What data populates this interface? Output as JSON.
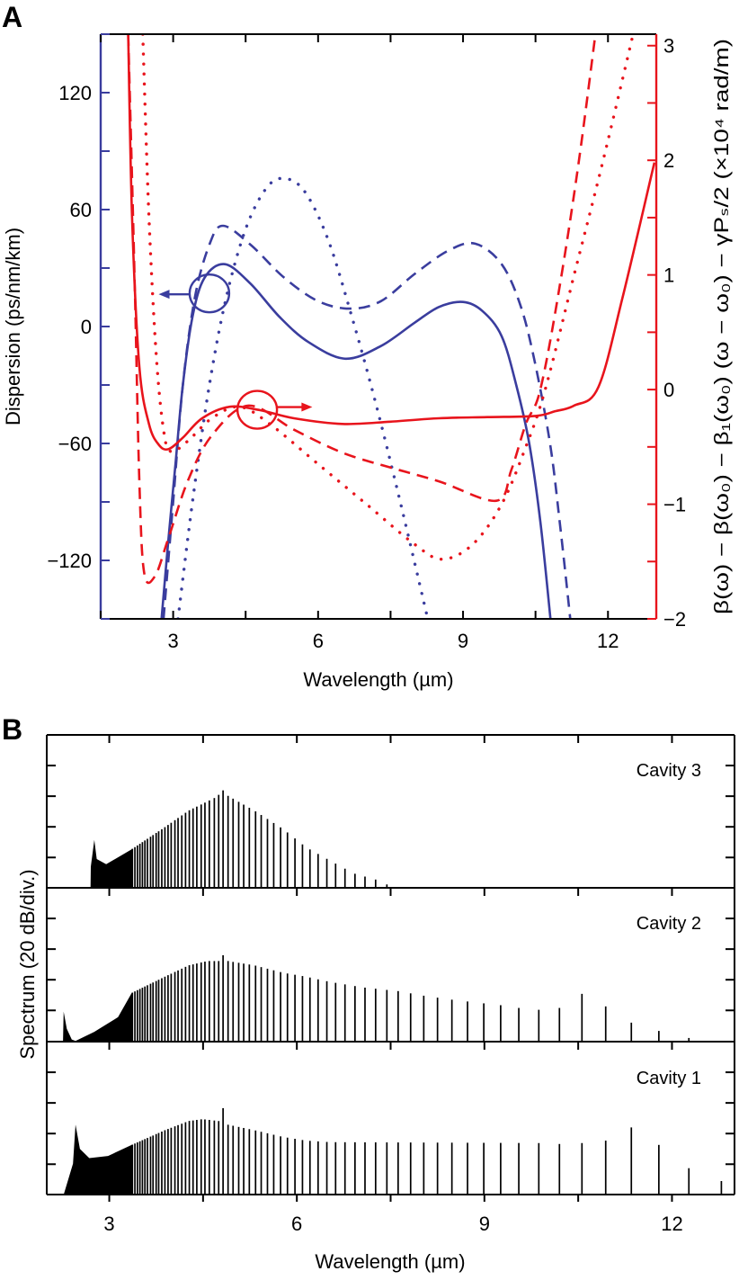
{
  "panel_labels": {
    "a": "A",
    "b": "B"
  },
  "chart_data": [
    {
      "type": "line",
      "panel": "A",
      "xlabel": "Wavelength (µm)",
      "ylabel": "Dispersion (ps/nm/km)",
      "y2label": "β(ω) − β(ω₀) − β₁(ω₀) (ω − ω₀) − γPₛ/2 (×10⁴ rad/m)",
      "xlim": [
        1.5,
        13
      ],
      "ylim": [
        -150,
        150
      ],
      "y2lim": [
        -2,
        3.1
      ],
      "xticks": [
        3,
        6,
        9,
        12
      ],
      "xtick_labels": [
        "3",
        "6",
        "9",
        "12"
      ],
      "yticks": [
        -120,
        -60,
        0,
        60,
        120
      ],
      "ytick_labels": [
        "−120",
        "−60",
        "0",
        "60",
        "120"
      ],
      "y2ticks": [
        -2,
        -1,
        0,
        1,
        2,
        3
      ],
      "y2tick_labels": [
        "−2",
        "−1",
        "0",
        "1",
        "2",
        "3"
      ],
      "grid": false,
      "colors": {
        "left_axis": "#3a3d9e",
        "right_axis": "#e8141c"
      },
      "series": [
        {
          "axis": "left",
          "style": "solid",
          "color": "#3a3d9e",
          "points": [
            [
              2.76,
              -150
            ],
            [
              2.9,
              -110
            ],
            [
              3.05,
              -70
            ],
            [
              3.2,
              -30
            ],
            [
              3.4,
              5
            ],
            [
              3.65,
              25
            ],
            [
              4.07,
              32
            ],
            [
              4.6,
              22
            ],
            [
              5.2,
              5
            ],
            [
              5.8,
              -8
            ],
            [
              6.56,
              -16.5
            ],
            [
              7.3,
              -10
            ],
            [
              8.0,
              2
            ],
            [
              8.5,
              10
            ],
            [
              9.0,
              12.6
            ],
            [
              9.4,
              8
            ],
            [
              9.8,
              -5
            ],
            [
              10.1,
              -30
            ],
            [
              10.37,
              -60
            ],
            [
              10.6,
              -100
            ],
            [
              10.81,
              -150
            ]
          ]
        },
        {
          "axis": "left",
          "style": "dashed",
          "color": "#3a3d9e",
          "points": [
            [
              2.8,
              -150
            ],
            [
              3.0,
              -90
            ],
            [
              3.2,
              -30
            ],
            [
              3.45,
              15
            ],
            [
              3.75,
              42
            ],
            [
              4.03,
              51.7
            ],
            [
              4.6,
              42
            ],
            [
              5.3,
              25
            ],
            [
              6.0,
              13
            ],
            [
              6.66,
              9.2
            ],
            [
              7.3,
              13
            ],
            [
              8.0,
              27
            ],
            [
              8.7,
              39
            ],
            [
              9.25,
              42.5
            ],
            [
              9.8,
              32
            ],
            [
              10.2,
              10
            ],
            [
              10.5,
              -20
            ],
            [
              10.8,
              -60
            ],
            [
              11.0,
              -100
            ],
            [
              11.22,
              -150
            ]
          ]
        },
        {
          "axis": "left",
          "style": "dotted",
          "color": "#3a3d9e",
          "points": [
            [
              3.1,
              -150
            ],
            [
              3.4,
              -90
            ],
            [
              3.75,
              -30
            ],
            [
              4.1,
              15
            ],
            [
              4.5,
              50
            ],
            [
              4.9,
              70
            ],
            [
              5.25,
              76
            ],
            [
              5.7,
              70
            ],
            [
              6.2,
              45
            ],
            [
              6.7,
              5
            ],
            [
              7.2,
              -40
            ],
            [
              7.7,
              -90
            ],
            [
              8.27,
              -150
            ]
          ]
        },
        {
          "axis": "right",
          "style": "solid",
          "color": "#e8141c",
          "points": [
            [
              2.07,
              3.1
            ],
            [
              2.15,
              1.5
            ],
            [
              2.3,
              0.2
            ],
            [
              2.5,
              -0.3
            ],
            [
              2.7,
              -0.48
            ],
            [
              2.9,
              -0.52
            ],
            [
              3.2,
              -0.42
            ],
            [
              3.6,
              -0.25
            ],
            [
              4.17,
              -0.15
            ],
            [
              4.8,
              -0.18
            ],
            [
              5.5,
              -0.25
            ],
            [
              6.5,
              -0.3
            ],
            [
              7.5,
              -0.28
            ],
            [
              8.5,
              -0.25
            ],
            [
              9.5,
              -0.24
            ],
            [
              10.5,
              -0.23
            ],
            [
              10.9,
              -0.19
            ],
            [
              11.3,
              -0.14
            ],
            [
              11.8,
              0.02
            ],
            [
              12.3,
              0.8
            ],
            [
              12.96,
              1.98
            ]
          ]
        },
        {
          "axis": "right",
          "style": "dashed",
          "color": "#e8141c",
          "points": [
            [
              2.07,
              3.1
            ],
            [
              2.2,
              1.0
            ],
            [
              2.3,
              -0.8
            ],
            [
              2.4,
              -1.6
            ],
            [
              2.62,
              -1.63
            ],
            [
              2.9,
              -1.3
            ],
            [
              3.3,
              -0.8
            ],
            [
              3.8,
              -0.4
            ],
            [
              4.56,
              -0.14
            ],
            [
              5.5,
              -0.35
            ],
            [
              6.5,
              -0.55
            ],
            [
              7.5,
              -0.68
            ],
            [
              8.5,
              -0.8
            ],
            [
              9.69,
              -0.97
            ],
            [
              10.0,
              -0.7
            ],
            [
              10.3,
              -0.3
            ],
            [
              10.6,
              0
            ],
            [
              11.0,
              0.9
            ],
            [
              11.4,
              2.0
            ],
            [
              11.74,
              3.1
            ]
          ]
        },
        {
          "axis": "right",
          "style": "dotted",
          "color": "#e8141c",
          "points": [
            [
              2.37,
              3.1
            ],
            [
              2.5,
              1.5
            ],
            [
              2.65,
              0.3
            ],
            [
              2.8,
              -0.35
            ],
            [
              2.95,
              -0.54
            ],
            [
              3.3,
              -0.45
            ],
            [
              3.8,
              -0.25
            ],
            [
              4.37,
              -0.15
            ],
            [
              5.0,
              -0.3
            ],
            [
              6.0,
              -0.65
            ],
            [
              7.0,
              -1.0
            ],
            [
              8.0,
              -1.35
            ],
            [
              8.57,
              -1.48
            ],
            [
              9.2,
              -1.35
            ],
            [
              9.8,
              -1.0
            ],
            [
              10.3,
              -0.5
            ],
            [
              10.7,
              0
            ],
            [
              11.3,
              1.0
            ],
            [
              11.9,
              2.0
            ],
            [
              12.52,
              3.1
            ]
          ]
        }
      ]
    },
    {
      "type": "bar",
      "panel": "B",
      "xlabel": "Wavelength (µm)",
      "ylabel": "Spectrum (20 dB/div.)",
      "xlim": [
        2,
        13
      ],
      "xticks": [
        3,
        6,
        9,
        12
      ],
      "xtick_labels": [
        "3",
        "6",
        "9",
        "12"
      ],
      "y_unit": "divisions (20 dB each)",
      "ylim": [
        0,
        5
      ],
      "grid": false,
      "comb_lines": [
        12.79,
        12.27,
        11.79,
        11.35,
        10.94,
        10.56,
        10.2,
        9.87,
        9.55,
        9.26,
        8.99,
        8.73,
        8.48,
        8.25,
        8.03,
        7.82,
        7.62,
        7.44,
        7.26,
        7.09,
        6.93,
        6.77,
        6.62,
        6.48,
        6.34,
        6.21,
        6.09,
        5.97,
        5.85,
        5.74,
        5.63,
        5.53,
        5.43,
        5.34,
        5.24,
        5.15,
        5.07,
        4.98,
        4.9,
        4.82,
        4.75,
        4.68,
        4.6,
        4.53,
        4.47,
        4.4,
        4.34,
        4.28,
        4.22,
        4.16,
        4.1,
        4.05,
        3.99,
        3.94,
        3.89,
        3.84,
        3.79,
        3.75,
        3.7,
        3.66,
        3.61,
        3.57,
        3.53,
        3.49,
        3.45,
        3.41,
        3.37
      ],
      "continuum_edge": 3.37,
      "series": [
        {
          "name": "Cavity 3",
          "envelope": [
            [
              2.7,
              0
            ],
            [
              2.705,
              0.7
            ],
            [
              2.76,
              1.57
            ],
            [
              2.8,
              0.95
            ],
            [
              2.95,
              0.78
            ],
            [
              3.36,
              1.27
            ],
            [
              3.89,
              1.99
            ],
            [
              4.27,
              2.53
            ],
            [
              4.72,
              2.98
            ],
            [
              4.82,
              3.19
            ],
            [
              4.9,
              3.01
            ],
            [
              5.32,
              2.53
            ],
            [
              5.78,
              1.93
            ],
            [
              6.15,
              1.33
            ],
            [
              6.53,
              0.9
            ],
            [
              6.91,
              0.48
            ],
            [
              7.26,
              0.28
            ],
            [
              7.44,
              0.12
            ],
            [
              7.5,
              0
            ]
          ]
        },
        {
          "name": "Cavity 2",
          "envelope": [
            [
              2.26,
              0
            ],
            [
              2.27,
              0.96
            ],
            [
              2.32,
              0.4
            ],
            [
              2.4,
              0.05
            ],
            [
              2.46,
              0
            ],
            [
              2.76,
              0.3
            ],
            [
              3.14,
              0.78
            ],
            [
              3.36,
              1.57
            ],
            [
              3.89,
              2.1
            ],
            [
              4.27,
              2.47
            ],
            [
              4.57,
              2.61
            ],
            [
              4.75,
              2.61
            ],
            [
              4.82,
              2.8
            ],
            [
              4.9,
              2.61
            ],
            [
              5.32,
              2.47
            ],
            [
              5.78,
              2.23
            ],
            [
              6.15,
              2.1
            ],
            [
              6.53,
              1.93
            ],
            [
              7.06,
              1.75
            ],
            [
              7.62,
              1.63
            ],
            [
              8.03,
              1.48
            ],
            [
              8.48,
              1.35
            ],
            [
              8.99,
              1.23
            ],
            [
              9.26,
              1.17
            ],
            [
              9.55,
              1.08
            ],
            [
              9.87,
              1.02
            ],
            [
              10.2,
              1.08
            ],
            [
              10.56,
              1.54
            ],
            [
              10.94,
              1.13
            ],
            [
              11.35,
              0.6
            ],
            [
              11.79,
              0.33
            ],
            [
              12.27,
              0.1
            ],
            [
              12.4,
              0
            ]
          ]
        },
        {
          "name": "Cavity 1",
          "envelope": [
            [
              2.27,
              0
            ],
            [
              2.42,
              1.02
            ],
            [
              2.46,
              2.29
            ],
            [
              2.53,
              1.5
            ],
            [
              2.68,
              1.2
            ],
            [
              2.98,
              1.27
            ],
            [
              3.36,
              1.63
            ],
            [
              3.89,
              2.11
            ],
            [
              4.27,
              2.41
            ],
            [
              4.49,
              2.47
            ],
            [
              4.75,
              2.41
            ],
            [
              4.82,
              2.83
            ],
            [
              4.9,
              2.29
            ],
            [
              5.32,
              2.11
            ],
            [
              5.78,
              1.89
            ],
            [
              6.15,
              1.77
            ],
            [
              6.53,
              1.72
            ],
            [
              9.87,
              1.69
            ],
            [
              10.2,
              1.66
            ],
            [
              10.56,
              1.69
            ],
            [
              10.94,
              1.77
            ],
            [
              11.35,
              2.2
            ],
            [
              11.79,
              1.63
            ],
            [
              12.27,
              0.87
            ],
            [
              12.79,
              0.45
            ],
            [
              12.9,
              0
            ]
          ]
        }
      ]
    }
  ]
}
